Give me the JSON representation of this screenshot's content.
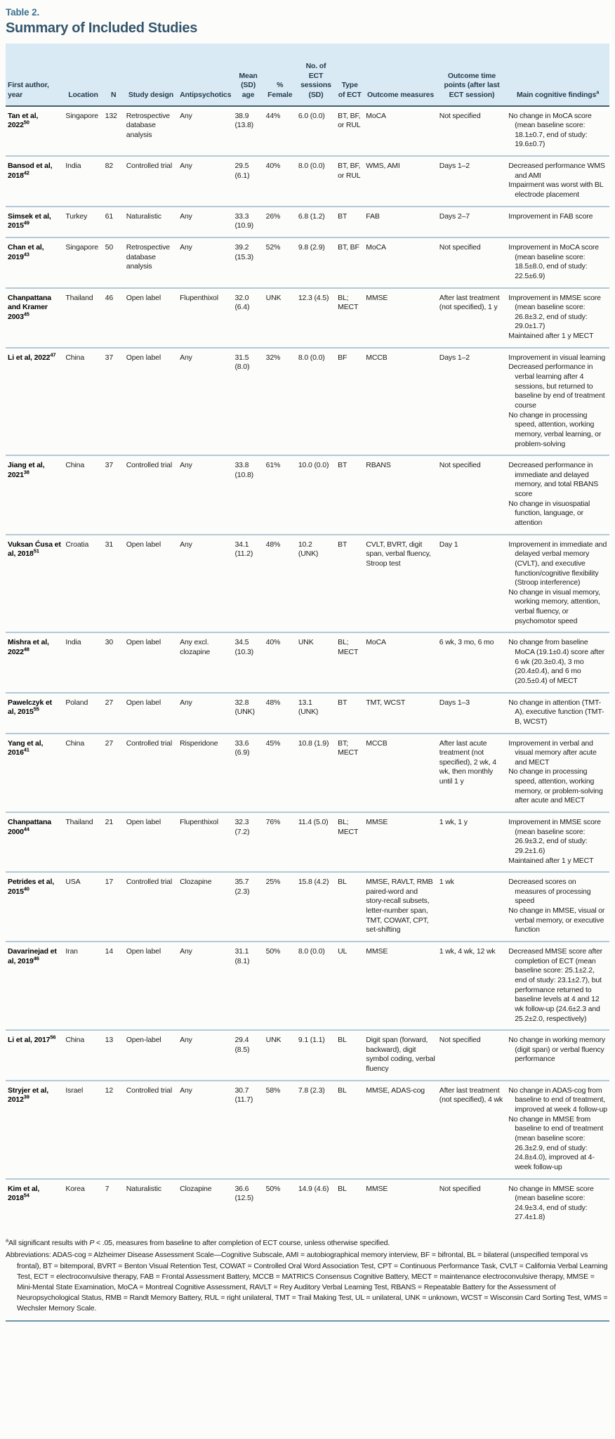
{
  "header": {
    "table_label": "Table 2.",
    "title": "Summary of Included Studies"
  },
  "colors": {
    "accent_label": "#3b7390",
    "title_dark": "#35566c",
    "header_band_bg": "#d9eaf4",
    "header_text": "#223c4d",
    "row_rule": "#b3c9d6",
    "header_rule": "#44606e",
    "bottom_rule": "#6f93a6"
  },
  "table": {
    "headers": [
      {
        "id": "author",
        "label": "First author, year"
      },
      {
        "id": "location",
        "label": "Location"
      },
      {
        "id": "n",
        "label": "N"
      },
      {
        "id": "design",
        "label": "Study design"
      },
      {
        "id": "antipsychotics",
        "label": "Antipsychotics"
      },
      {
        "id": "age",
        "label": "Mean (SD) age"
      },
      {
        "id": "female",
        "label": "% Female"
      },
      {
        "id": "sessions",
        "label": "No. of ECT sessions (SD)"
      },
      {
        "id": "ect_type",
        "label": "Type of ECT"
      },
      {
        "id": "measures",
        "label": "Outcome measures"
      },
      {
        "id": "timepoints",
        "label": "Outcome time points (after last ECT session)"
      },
      {
        "id": "findings",
        "label": "Main cognitive findings",
        "sup": "a"
      }
    ],
    "rows": [
      {
        "author": "Tan et al, 2022",
        "ref": "50",
        "location": "Singapore",
        "n": "132",
        "design": "Retrospective database analysis",
        "antipsychotics": "Any",
        "age": "38.9 (13.8)",
        "female": "44%",
        "sessions": "6.0 (0.0)",
        "ect_type": "BT, BF, or RUL",
        "measures": "MoCA",
        "timepoints": "Not specified",
        "findings": [
          "No change in MoCA score (mean baseline score: 18.1±0.7, end of study: 19.6±0.7)"
        ]
      },
      {
        "author": "Bansod et al, 2018",
        "ref": "42",
        "location": "India",
        "n": "82",
        "design": "Controlled trial",
        "antipsychotics": "Any",
        "age": "29.5 (6.1)",
        "female": "40%",
        "sessions": "8.0 (0.0)",
        "ect_type": "BT, BF, or RUL",
        "measures": "WMS, AMI",
        "timepoints": "Days 1–2",
        "findings": [
          "Decreased performance WMS and AMI",
          "Impairment was worst with BL electrode placement"
        ]
      },
      {
        "author": "Simsek et al, 2015",
        "ref": "49",
        "location": "Turkey",
        "n": "61",
        "design": "Naturalistic",
        "antipsychotics": "Any",
        "age": "33.3 (10.9)",
        "female": "26%",
        "sessions": "6.8 (1.2)",
        "ect_type": "BT",
        "measures": "FAB",
        "timepoints": "Days 2–7",
        "findings": [
          "Improvement in FAB score"
        ]
      },
      {
        "author": "Chan et al, 2019",
        "ref": "43",
        "location": "Singapore",
        "n": "50",
        "design": "Retrospective database analysis",
        "antipsychotics": "Any",
        "age": "39.2 (15.3)",
        "female": "52%",
        "sessions": "9.8 (2.9)",
        "ect_type": "BT, BF",
        "measures": "MoCA",
        "timepoints": "Not specified",
        "findings": [
          "Improvement in MoCA score (mean baseline score: 18.5±8.0, end of study: 22.5±6.9)"
        ]
      },
      {
        "author": "Chanpattana and Kramer 2003",
        "ref": "45",
        "location": "Thailand",
        "n": "46",
        "design": "Open label",
        "antipsychotics": "Flupenthixol",
        "age": "32.0 (6.4)",
        "female": "UNK",
        "sessions": "12.3 (4.5)",
        "ect_type": "BL; MECT",
        "measures": "MMSE",
        "timepoints": "After last treatment (not specified), 1 y",
        "findings": [
          "Improvement in MMSE score (mean baseline score: 26.8±3.2, end of study: 29.0±1.7)",
          "Maintained after 1 y MECT"
        ]
      },
      {
        "author": "Li et al, 2022",
        "ref": "47",
        "location": "China",
        "n": "37",
        "design": "Open label",
        "antipsychotics": "Any",
        "age": "31.5 (8.0)",
        "female": "32%",
        "sessions": "8.0 (0.0)",
        "ect_type": "BF",
        "measures": "MCCB",
        "timepoints": "Days 1–2",
        "findings": [
          "Improvement in visual learning",
          "Decreased performance in verbal learning after 4 sessions, but returned to baseline by end of treatment course",
          "No change in processing speed, attention, working memory, verbal learning, or problem-solving"
        ]
      },
      {
        "author": "Jiang et al, 2021",
        "ref": "38",
        "location": "China",
        "n": "37",
        "design": "Controlled trial",
        "antipsychotics": "Any",
        "age": "33.8 (10.8)",
        "female": "61%",
        "sessions": "10.0 (0.0)",
        "ect_type": "BT",
        "measures": "RBANS",
        "timepoints": "Not specified",
        "findings": [
          "Decreased performance in immediate and delayed memory, and total RBANS score",
          "No change in visuospatial function, language, or attention"
        ]
      },
      {
        "author": "Vuksan Ćusa et al, 2018",
        "ref": "51",
        "location": "Croatia",
        "n": "31",
        "design": "Open label",
        "antipsychotics": "Any",
        "age": "34.1 (11.2)",
        "female": "48%",
        "sessions": "10.2 (UNK)",
        "ect_type": "BT",
        "measures": "CVLT, BVRT, digit span, verbal fluency, Stroop test",
        "timepoints": "Day 1",
        "findings": [
          "Improvement in immediate and delayed verbal memory (CVLT), and executive function/cognitive flexibility (Stroop interference)",
          "No change in visual memory, working memory, attention, verbal fluency, or psychomotor speed"
        ]
      },
      {
        "author": "Mishra et al, 2022",
        "ref": "48",
        "location": "India",
        "n": "30",
        "design": "Open label",
        "antipsychotics": "Any excl. clozapine",
        "age": "34.5 (10.3)",
        "female": "40%",
        "sessions": "UNK",
        "ect_type": "BL; MECT",
        "measures": "MoCA",
        "timepoints": "6 wk, 3 mo, 6 mo",
        "findings": [
          "No change from baseline MoCA (19.1±0.4) score after 6 wk (20.3±0.4), 3 mo (20.4±0.4), and 6 mo (20.5±0.4) of MECT"
        ]
      },
      {
        "author": "Pawelczyk et al, 2015",
        "ref": "55",
        "location": "Poland",
        "n": "27",
        "design": "Open label",
        "antipsychotics": "Any",
        "age": "32.8 (UNK)",
        "female": "48%",
        "sessions": "13.1 (UNK)",
        "ect_type": "BT",
        "measures": "TMT, WCST",
        "timepoints": "Days 1–3",
        "findings": [
          "No change in attention (TMT-A), executive function (TMT-B, WCST)"
        ]
      },
      {
        "author": "Yang et al, 2016",
        "ref": "41",
        "location": "China",
        "n": "27",
        "design": "Controlled trial",
        "antipsychotics": "Risperidone",
        "age": "33.6 (6.9)",
        "female": "45%",
        "sessions": "10.8 (1.9)",
        "ect_type": "BT; MECT",
        "measures": "MCCB",
        "timepoints": "After last acute treatment (not specified), 2 wk, 4 wk, then monthly until 1 y",
        "findings": [
          "Improvement in verbal and visual memory after acute and MECT",
          "No change in processing speed, attention, working memory, or problem-solving after acute and MECT"
        ]
      },
      {
        "author": "Chanpattana 2000",
        "ref": "44",
        "location": "Thailand",
        "n": "21",
        "design": "Open label",
        "antipsychotics": "Flupenthixol",
        "age": "32.3 (7.2)",
        "female": "76%",
        "sessions": "11.4 (5.0)",
        "ect_type": "BL; MECT",
        "measures": "MMSE",
        "timepoints": "1 wk, 1 y",
        "findings": [
          "Improvement in MMSE score (mean baseline score: 26.9±3.2, end of study: 29.2±1.6)",
          "Maintained after 1 y MECT"
        ]
      },
      {
        "author": "Petrides et al, 2015",
        "ref": "40",
        "location": "USA",
        "n": "17",
        "design": "Controlled trial",
        "antipsychotics": "Clozapine",
        "age": "35.7 (2.3)",
        "female": "25%",
        "sessions": "15.8 (4.2)",
        "ect_type": "BL",
        "measures": "MMSE, RAVLT, RMB paired-word and story-recall subsets, letter-number span, TMT, COWAT, CPT, set-shifting",
        "timepoints": "1 wk",
        "findings": [
          "Decreased scores on measures of processing speed",
          "No change in MMSE, visual or verbal memory, or executive function"
        ]
      },
      {
        "author": "Davarinejad et al, 2019",
        "ref": "46",
        "location": "Iran",
        "n": "14",
        "design": "Open label",
        "antipsychotics": "Any",
        "age": "31.1 (8.1)",
        "female": "50%",
        "sessions": "8.0 (0.0)",
        "ect_type": "UL",
        "measures": "MMSE",
        "timepoints": "1 wk, 4 wk, 12 wk",
        "findings": [
          "Decreased MMSE score after completion of ECT (mean baseline score: 25.1±2.2, end of study: 23.1±2.7), but performance returned to baseline levels at 4 and 12 wk follow-up (24.6±2.3 and 25.2±2.0, respectively)"
        ]
      },
      {
        "author": "Li et al, 2017",
        "ref": "56",
        "location": "China",
        "n": "13",
        "design": "Open-label",
        "antipsychotics": "Any",
        "age": "29.4 (8.5)",
        "female": "UNK",
        "sessions": "9.1 (1.1)",
        "ect_type": "BL",
        "measures": "Digit span (forward, backward), digit symbol coding, verbal fluency",
        "timepoints": "Not specified",
        "findings": [
          "No change in working memory (digit span) or verbal fluency performance"
        ]
      },
      {
        "author": "Stryjer et al, 2012",
        "ref": "39",
        "location": "Israel",
        "n": "12",
        "design": "Controlled trial",
        "antipsychotics": "Any",
        "age": "30.7 (11.7)",
        "female": "58%",
        "sessions": "7.8 (2.3)",
        "ect_type": "BL",
        "measures": "MMSE, ADAS-cog",
        "timepoints": "After last treatment (not specified), 4 wk",
        "findings": [
          "No change in ADAS-cog from baseline to end of treatment, improved at week 4 follow-up",
          "No change in MMSE from baseline to end of treatment (mean baseline score: 26.3±2.9, end of study: 24.8±4.0), improved at 4-week follow-up"
        ]
      },
      {
        "author": "Kim et al, 2018",
        "ref": "54",
        "location": "Korea",
        "n": "7",
        "design": "Naturalistic",
        "antipsychotics": "Clozapine",
        "age": "36.6 (12.5)",
        "female": "50%",
        "sessions": "14.9 (4.6)",
        "ect_type": "BL",
        "measures": "MMSE",
        "timepoints": "Not specified",
        "findings": [
          "No change in MMSE score (mean baseline score: 24.9±3.4, end of study: 27.4±1.8)"
        ]
      }
    ]
  },
  "footnotes": {
    "sig_marker": "a",
    "sig_pre": "All significant results with ",
    "sig_italic": "P",
    "sig_post": " < .05, measures from baseline to after completion of ECT course, unless otherwise specified.",
    "abbreviations": "Abbreviations: ADAS-cog = Alzheimer Disease Assessment Scale—Cognitive Subscale, AMI = autobiographical memory interview, BF = bifrontal, BL = bilateral (unspecified temporal vs frontal), BT = bitemporal, BVRT = Benton Visual Retention Test, COWAT = Controlled Oral Word Association Test, CPT = Continuous Performance Task, CVLT = California Verbal Learning Test, ECT = electroconvulsive therapy, FAB = Frontal Assessment Battery, MCCB = MATRICS Consensus Cognitive Battery, MECT = maintenance electroconvulsive therapy, MMSE = Mini-Mental State Examination, MoCA = Montreal Cognitive Assessment, RAVLT = Rey Auditory Verbal Learning Test, RBANS = Repeatable Battery for the Assessment of Neuropsychological Status, RMB = Randt Memory Battery, RUL = right unilateral, TMT = Trail Making Test, UL = unilateral, UNK = unknown, WCST = Wisconsin Card Sorting Test, WMS = Wechsler Memory Scale."
  }
}
